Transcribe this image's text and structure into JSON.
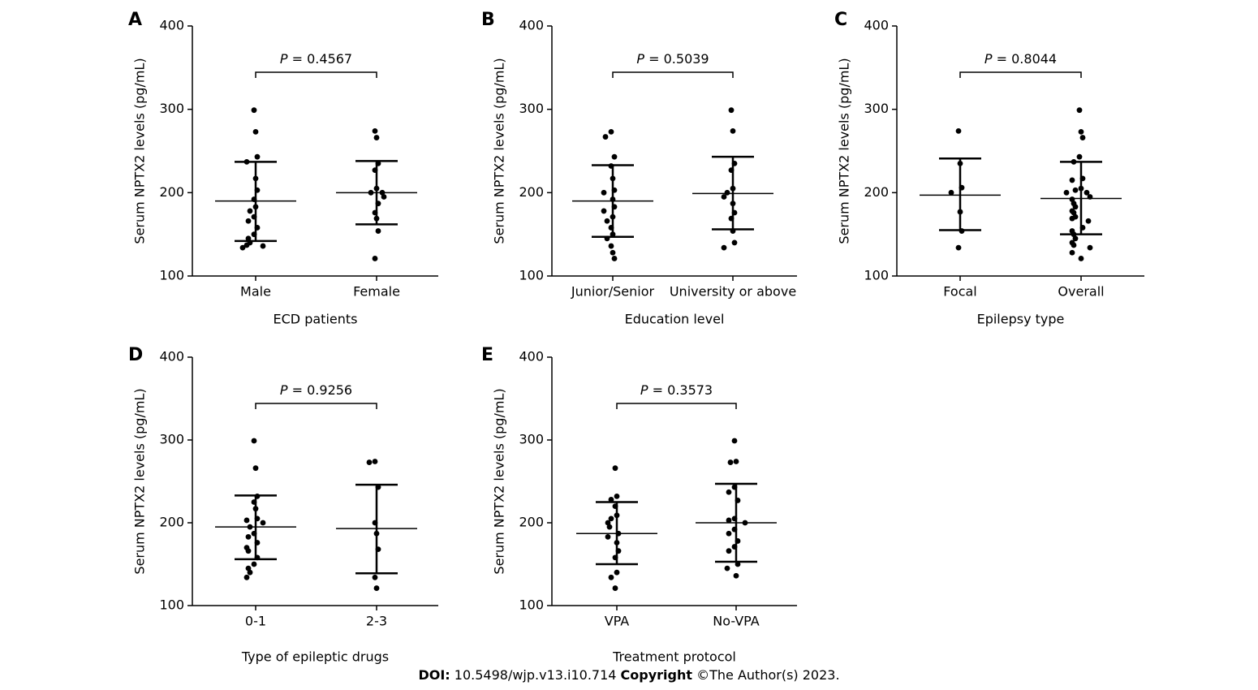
{
  "footer": {
    "doi_label": "DOI:",
    "doi_value": "10.5498/wjp.v13.i10.714",
    "copyright_label": "Copyright",
    "copyright_value": "©The Author(s) 2023."
  },
  "chart_data": [
    {
      "panel": "A",
      "type": "scatter",
      "ylabel": "Serum NPTX2 levels (pg/mL)",
      "xlabel": "ECD patients",
      "ylim": [
        100,
        400
      ],
      "yticks": [
        100,
        200,
        300,
        400
      ],
      "p_label": "P",
      "p_value": "= 0.4567",
      "groups": [
        {
          "name": "Male",
          "mean": 190,
          "sd_low": 142,
          "sd_high": 237,
          "values": [
            299,
            273,
            243,
            237,
            217,
            203,
            192,
            183,
            178,
            171,
            166,
            158,
            150,
            145,
            140,
            137,
            134,
            136
          ]
        },
        {
          "name": "Female",
          "mean": 200,
          "sd_low": 162,
          "sd_high": 238,
          "values": [
            274,
            266,
            235,
            227,
            205,
            200,
            200,
            195,
            187,
            176,
            169,
            154,
            121
          ]
        }
      ]
    },
    {
      "panel": "B",
      "type": "scatter",
      "ylabel": "Serum NPTX2 levels (pg/mL)",
      "xlabel": "Education level",
      "ylim": [
        100,
        400
      ],
      "yticks": [
        100,
        200,
        300,
        400
      ],
      "p_label": "P",
      "p_value": "= 0.5039",
      "groups": [
        {
          "name": "Junior/Senior",
          "mean": 190,
          "sd_low": 147,
          "sd_high": 233,
          "values": [
            273,
            267,
            243,
            232,
            217,
            203,
            200,
            192,
            183,
            178,
            171,
            166,
            158,
            150,
            145,
            136,
            128,
            121
          ]
        },
        {
          "name": "University or above",
          "mean": 199,
          "sd_low": 156,
          "sd_high": 243,
          "values": [
            299,
            274,
            235,
            227,
            205,
            200,
            195,
            187,
            176,
            169,
            154,
            140,
            134
          ]
        }
      ]
    },
    {
      "panel": "C",
      "type": "scatter",
      "ylabel": "Serum NPTX2 levels (pg/mL)",
      "xlabel": "Epilepsy type",
      "ylim": [
        100,
        400
      ],
      "yticks": [
        100,
        200,
        300,
        400
      ],
      "p_label": "P",
      "p_value": "= 0.8044",
      "groups": [
        {
          "name": "Focal",
          "mean": 197,
          "sd_low": 155,
          "sd_high": 241,
          "values": [
            274,
            235,
            206,
            200,
            177,
            154,
            134
          ]
        },
        {
          "name": "Overall",
          "mean": 193,
          "sd_low": 150,
          "sd_high": 237,
          "values": [
            299,
            273,
            266,
            243,
            237,
            217,
            215,
            205,
            203,
            200,
            200,
            195,
            192,
            187,
            183,
            178,
            176,
            171,
            169,
            166,
            158,
            154,
            150,
            145,
            140,
            137,
            134,
            128,
            121
          ]
        }
      ]
    },
    {
      "panel": "D",
      "type": "scatter",
      "ylabel": "Serum NPTX2 levels (pg/mL)",
      "xlabel": "Type of epileptic drugs",
      "ylim": [
        100,
        400
      ],
      "yticks": [
        100,
        200,
        300,
        400
      ],
      "p_label": "P",
      "p_value": "= 0.9256",
      "groups": [
        {
          "name": "0-1",
          "mean": 195,
          "sd_low": 156,
          "sd_high": 233,
          "values": [
            299,
            266,
            232,
            225,
            217,
            205,
            203,
            200,
            195,
            187,
            183,
            176,
            170,
            166,
            158,
            150,
            145,
            140,
            134
          ]
        },
        {
          "name": "2-3",
          "mean": 193,
          "sd_low": 139,
          "sd_high": 246,
          "values": [
            274,
            273,
            243,
            200,
            187,
            168,
            134,
            121
          ]
        }
      ]
    },
    {
      "panel": "E",
      "type": "scatter",
      "ylabel": "Serum NPTX2 levels (pg/mL)",
      "xlabel": "Treatment protocol",
      "ylim": [
        100,
        400
      ],
      "yticks": [
        100,
        200,
        300,
        400
      ],
      "p_label": "P",
      "p_value": "= 0.3573",
      "groups": [
        {
          "name": "VPA",
          "mean": 187,
          "sd_low": 150,
          "sd_high": 225,
          "values": [
            266,
            232,
            228,
            220,
            209,
            205,
            200,
            195,
            187,
            183,
            176,
            166,
            158,
            140,
            134,
            121
          ]
        },
        {
          "name": "No-VPA",
          "mean": 200,
          "sd_low": 153,
          "sd_high": 247,
          "values": [
            299,
            274,
            273,
            243,
            237,
            227,
            205,
            203,
            200,
            192,
            187,
            178,
            171,
            166,
            150,
            145,
            136
          ]
        }
      ]
    }
  ]
}
